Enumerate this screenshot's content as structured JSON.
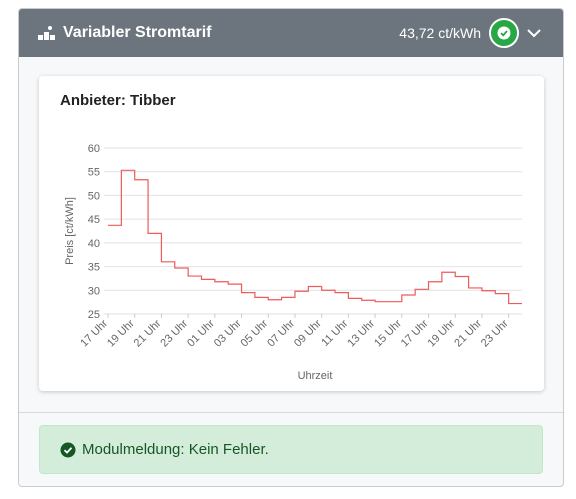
{
  "header": {
    "title": "Variabler Stromtarif",
    "price": "43,72 ct/kWh"
  },
  "card": {
    "title": "Anbieter: Tibber"
  },
  "chart_data": {
    "type": "line",
    "step": true,
    "color": "#ef5a5a",
    "ylabel": "Preis [ct/kWh]",
    "xlabel": "Uhrzeit",
    "categories": [
      "17 Uhr",
      null,
      "19 Uhr",
      null,
      "21 Uhr",
      null,
      "23 Uhr",
      null,
      "01 Uhr",
      null,
      "03 Uhr",
      null,
      "05 Uhr",
      null,
      "07 Uhr",
      null,
      "09 Uhr",
      null,
      "11 Uhr",
      null,
      "13 Uhr",
      null,
      "15 Uhr",
      null,
      "17 Uhr",
      null,
      "19 Uhr",
      null,
      "21 Uhr",
      null,
      "23 Uhr"
    ],
    "values": [
      43.7,
      55.3,
      53.3,
      42,
      36,
      34.7,
      33,
      32.3,
      31.8,
      31.3,
      29.5,
      28.5,
      28,
      28.5,
      29.8,
      30.8,
      30,
      29.5,
      28.3,
      27.9,
      27.6,
      27.6,
      29,
      30.2,
      31.8,
      33.8,
      32.9,
      30.5,
      29.9,
      29.3,
      27.2
    ],
    "ylim": [
      25,
      60
    ],
    "yticks": [
      25,
      30,
      35,
      40,
      45,
      50,
      55,
      60
    ],
    "grid": true
  },
  "alert": {
    "text": "Modulmeldung: Kein Fehler."
  }
}
